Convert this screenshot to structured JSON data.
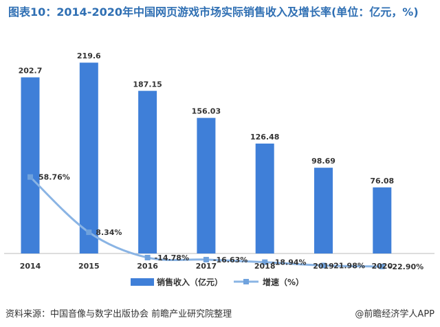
{
  "title": "图表10：2014-2020年中国网页游戏市场实际销售收入及增长率(单位：亿元，%)",
  "source": "资料来源：中国音像与数字出版协会 前瞻产业研究院整理",
  "brand": "@前瞻经济学人APP",
  "chart_data": {
    "type": "bar",
    "title": "图表10：2014-2020年中国网页游戏市场实际销售收入及增长率(单位：亿元，%)",
    "categories": [
      "2014",
      "2015",
      "2016",
      "2017",
      "2018",
      "2019",
      "2020"
    ],
    "series": [
      {
        "name": "销售收入（亿元）",
        "type": "bar",
        "axis": "left",
        "values": [
          202.7,
          219.6,
          187.15,
          156.03,
          126.48,
          98.69,
          76.08
        ],
        "labels": [
          "202.7",
          "219.6",
          "187.15",
          "156.03",
          "126.48",
          "98.69",
          "76.08"
        ],
        "color": "#3f7fd8"
      },
      {
        "name": "增速（%）",
        "type": "line",
        "axis": "right",
        "values": [
          58.76,
          8.34,
          -14.78,
          -16.63,
          -18.94,
          -21.98,
          -22.9
        ],
        "labels": [
          "58.76%",
          "8.34%",
          "-14.78%",
          "-16.63%",
          "-18.94%",
          "-21.98%",
          "-22.90%"
        ],
        "color": "#8ab4e4"
      }
    ],
    "ylim_left": [
      0,
      230
    ],
    "ylim_right": [
      -30,
      62
    ],
    "legend": "bottom",
    "grid": false
  },
  "colors": {
    "bar": "#3f7fd8",
    "line": "#8ab4e4",
    "marker": "#6fa2dd",
    "title": "#2f6fb3"
  }
}
